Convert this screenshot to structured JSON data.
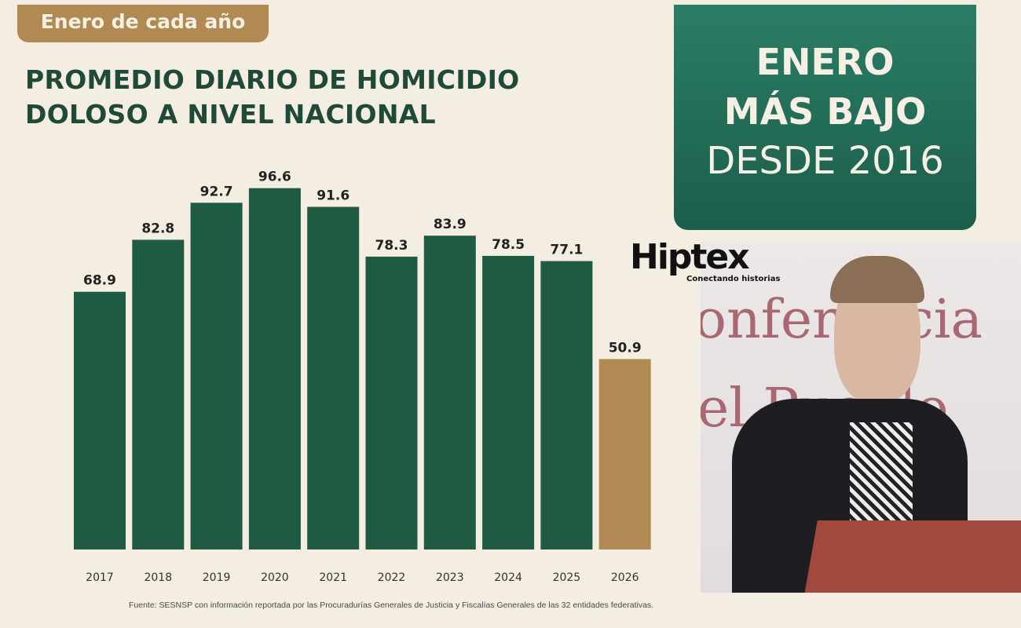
{
  "header": {
    "tag": "Enero de cada año",
    "title_line1": "PROMEDIO DIARIO DE HOMICIDIO",
    "title_line2": "DOLOSO A NIVEL NACIONAL"
  },
  "banner": {
    "line1": "ENERO",
    "line2": "MÁS BAJO",
    "line3": "DESDE 2016"
  },
  "source": "Fuente: SESNSP con información reportada por las Procuradurías Generales de Justicia y Fiscalías Generales de las 32 entidades federativas.",
  "logo": {
    "name": "Hiptex",
    "tagline": "Conectando historias"
  },
  "video": {
    "backdrop_text1": "onferencia",
    "backdrop_text2": "el Pueblo"
  },
  "colors": {
    "bar": "#1f5a42",
    "highlight": "#b08a52"
  },
  "chart_data": {
    "type": "bar",
    "categories": [
      "2017",
      "2018",
      "2019",
      "2020",
      "2021",
      "2022",
      "2023",
      "2024",
      "2025",
      "2026"
    ],
    "values": [
      68.9,
      82.8,
      92.7,
      96.6,
      91.6,
      78.3,
      83.9,
      78.5,
      77.1,
      50.9
    ],
    "highlight": "2026",
    "ylim": [
      0,
      100
    ],
    "grid": false,
    "xlabel": "",
    "ylabel": ""
  }
}
